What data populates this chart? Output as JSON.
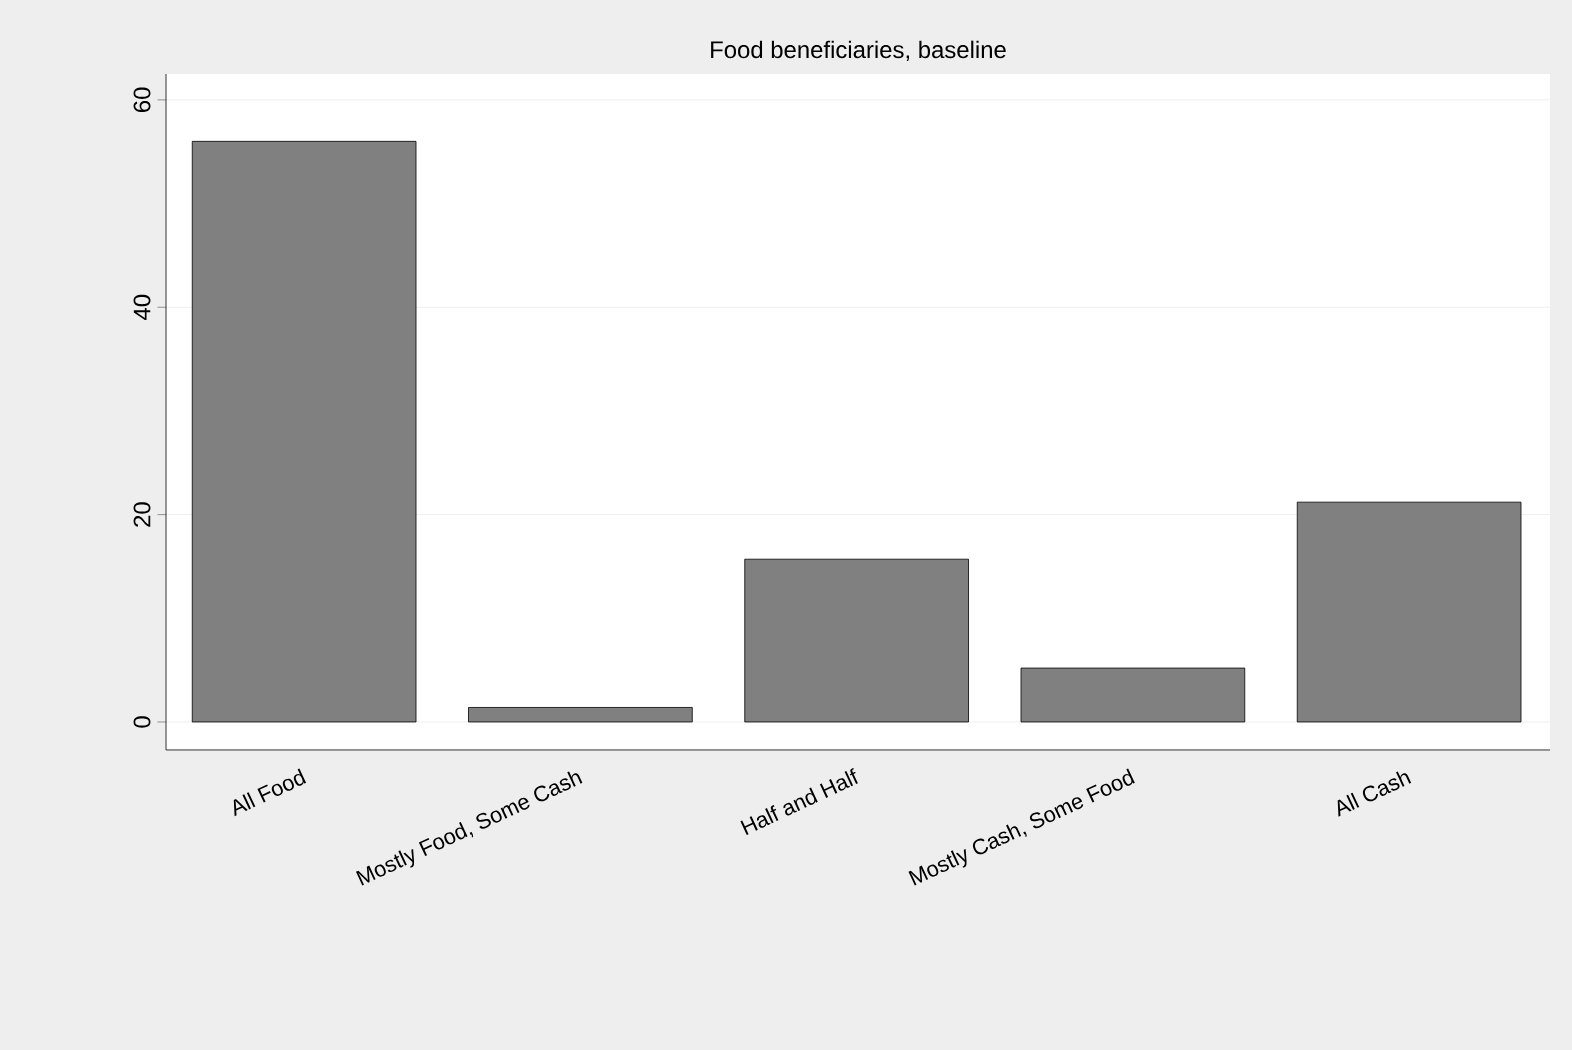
{
  "chart_data": {
    "type": "bar",
    "title": "Food beneficiaries, baseline",
    "categories": [
      "All Food",
      "Mostly Food, Some Cash",
      "Half and Half",
      "Mostly Cash, Some Food",
      "All Cash"
    ],
    "values": [
      56,
      1.4,
      15.7,
      5.2,
      21.2
    ],
    "color": "#808080",
    "ylim": [
      -2.7,
      62.5
    ],
    "yticks": [
      0,
      20,
      40,
      60
    ],
    "grid": "y"
  }
}
